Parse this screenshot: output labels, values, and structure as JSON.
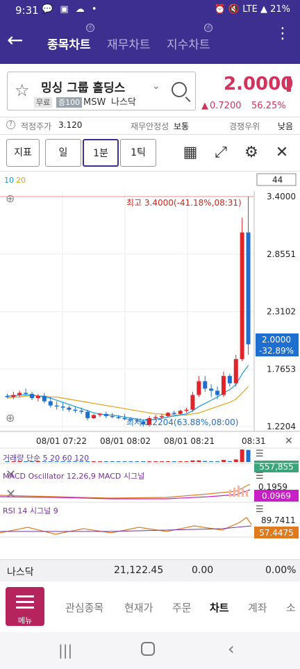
{
  "status_bar": {
    "time": "9:31",
    "left_icons": "💬 ▣ ☁ •",
    "right_icons": "⏰ 🔇 LTE ▲ 21%"
  },
  "nav": {
    "tabs": [
      {
        "label": "종목차트",
        "active": true
      },
      {
        "label": "재무차트",
        "active": false
      },
      {
        "label": "지수차트",
        "active": false
      }
    ]
  },
  "stock": {
    "name": "밍싱 그룹 홀딩스",
    "tags": [
      "무료",
      "증100"
    ],
    "ticker": "MSW",
    "market": "나스닥",
    "price": "2.0000",
    "change": "0.7200",
    "change_pct": "56.25%"
  },
  "info": {
    "fair_price_label": "적정주가",
    "fair_price": "3.120",
    "stability_label": "재무안정성",
    "stability": "보통",
    "competition_label": "경쟁우위",
    "competition": "낮음"
  },
  "toolbar": {
    "indicator": "지표",
    "day": "일",
    "minute": "1분",
    "tick": "1틱"
  },
  "chart_data": {
    "type": "candlestick",
    "ma_legend": [
      "10",
      "20"
    ],
    "count_box": "44",
    "high_label": "최고 3.4000(-41.18%,08:31)",
    "low_label": "최저 1.2204(63.88%,08:00)",
    "y_ticks": [
      "3.4000",
      "2.8551",
      "2.3102",
      "1.7653",
      "1.2204"
    ],
    "ylim": [
      1.2204,
      3.4
    ],
    "current": "2.0000",
    "current_pct": "-32.89%",
    "x_ticks": [
      "08/01 07:22",
      "08/01 08:02",
      "08/01 08:21",
      "08:31"
    ],
    "candles": [
      {
        "o": 1.51,
        "h": 1.53,
        "l": 1.49,
        "c": 1.5
      },
      {
        "o": 1.5,
        "h": 1.55,
        "l": 1.48,
        "c": 1.52
      },
      {
        "o": 1.52,
        "h": 1.56,
        "l": 1.5,
        "c": 1.54
      },
      {
        "o": 1.54,
        "h": 1.58,
        "l": 1.52,
        "c": 1.53
      },
      {
        "o": 1.53,
        "h": 1.55,
        "l": 1.47,
        "c": 1.49
      },
      {
        "o": 1.49,
        "h": 1.53,
        "l": 1.46,
        "c": 1.51
      },
      {
        "o": 1.51,
        "h": 1.54,
        "l": 1.44,
        "c": 1.46
      },
      {
        "o": 1.46,
        "h": 1.5,
        "l": 1.4,
        "c": 1.42
      },
      {
        "o": 1.42,
        "h": 1.46,
        "l": 1.38,
        "c": 1.41
      },
      {
        "o": 1.41,
        "h": 1.45,
        "l": 1.37,
        "c": 1.4
      },
      {
        "o": 1.4,
        "h": 1.42,
        "l": 1.36,
        "c": 1.38
      },
      {
        "o": 1.38,
        "h": 1.41,
        "l": 1.35,
        "c": 1.37
      },
      {
        "o": 1.37,
        "h": 1.4,
        "l": 1.34,
        "c": 1.36
      },
      {
        "o": 1.36,
        "h": 1.38,
        "l": 1.28,
        "c": 1.3
      },
      {
        "o": 1.3,
        "h": 1.34,
        "l": 1.29,
        "c": 1.33
      },
      {
        "o": 1.33,
        "h": 1.35,
        "l": 1.31,
        "c": 1.34
      },
      {
        "o": 1.34,
        "h": 1.36,
        "l": 1.3,
        "c": 1.32
      },
      {
        "o": 1.32,
        "h": 1.35,
        "l": 1.3,
        "c": 1.31
      },
      {
        "o": 1.31,
        "h": 1.33,
        "l": 1.29,
        "c": 1.3
      },
      {
        "o": 1.3,
        "h": 1.34,
        "l": 1.28,
        "c": 1.29
      },
      {
        "o": 1.29,
        "h": 1.31,
        "l": 1.27,
        "c": 1.28
      },
      {
        "o": 1.28,
        "h": 1.3,
        "l": 1.26,
        "c": 1.27
      },
      {
        "o": 1.27,
        "h": 1.29,
        "l": 1.22,
        "c": 1.24
      },
      {
        "o": 1.24,
        "h": 1.32,
        "l": 1.2204,
        "c": 1.3
      },
      {
        "o": 1.3,
        "h": 1.33,
        "l": 1.28,
        "c": 1.31
      },
      {
        "o": 1.31,
        "h": 1.34,
        "l": 1.29,
        "c": 1.32
      },
      {
        "o": 1.32,
        "h": 1.36,
        "l": 1.31,
        "c": 1.35
      },
      {
        "o": 1.35,
        "h": 1.37,
        "l": 1.33,
        "c": 1.34
      },
      {
        "o": 1.34,
        "h": 1.38,
        "l": 1.33,
        "c": 1.37
      },
      {
        "o": 1.37,
        "h": 1.4,
        "l": 1.35,
        "c": 1.38
      },
      {
        "o": 1.38,
        "h": 1.55,
        "l": 1.36,
        "c": 1.52
      },
      {
        "o": 1.52,
        "h": 1.7,
        "l": 1.5,
        "c": 1.65
      },
      {
        "o": 1.65,
        "h": 1.7,
        "l": 1.55,
        "c": 1.58
      },
      {
        "o": 1.58,
        "h": 1.62,
        "l": 1.5,
        "c": 1.56
      },
      {
        "o": 1.56,
        "h": 1.6,
        "l": 1.48,
        "c": 1.52
      },
      {
        "o": 1.52,
        "h": 1.74,
        "l": 1.5,
        "c": 1.7
      },
      {
        "o": 1.7,
        "h": 1.72,
        "l": 1.6,
        "c": 1.63
      },
      {
        "o": 1.63,
        "h": 1.9,
        "l": 1.6,
        "c": 1.86
      },
      {
        "o": 1.86,
        "h": 3.2,
        "l": 1.84,
        "c": 3.06
      },
      {
        "o": 3.06,
        "h": 3.4,
        "l": 1.9,
        "c": 2.0
      }
    ],
    "ma10": [
      1.51,
      1.51,
      1.52,
      1.52,
      1.52,
      1.51,
      1.5,
      1.49,
      1.47,
      1.45,
      1.43,
      1.41,
      1.39,
      1.37,
      1.35,
      1.34,
      1.33,
      1.33,
      1.32,
      1.31,
      1.3,
      1.29,
      1.28,
      1.28,
      1.29,
      1.3,
      1.31,
      1.32,
      1.33,
      1.34,
      1.37,
      1.41,
      1.44,
      1.47,
      1.5,
      1.54,
      1.57,
      1.62,
      1.72,
      1.8
    ],
    "ma20": [
      1.49,
      1.5,
      1.5,
      1.51,
      1.51,
      1.51,
      1.51,
      1.5,
      1.5,
      1.49,
      1.48,
      1.47,
      1.46,
      1.45,
      1.44,
      1.43,
      1.42,
      1.41,
      1.4,
      1.39,
      1.38,
      1.37,
      1.36,
      1.35,
      1.34,
      1.34,
      1.33,
      1.33,
      1.33,
      1.33,
      1.34,
      1.35,
      1.37,
      1.39,
      1.41,
      1.43,
      1.45,
      1.48,
      1.54,
      1.6
    ],
    "volume_label": "거래량 단순 5 20 60 120",
    "volume_value": "557,855",
    "macd_label": "MACD Oscillator 12,26,9 MACD 시그널",
    "macd_tick": "0.1959",
    "macd_value": "0.0969",
    "rsi_label": "RSI 14 시그널 9",
    "rsi_tick": "89.7411",
    "rsi_value": "57.4475"
  },
  "index_row": {
    "name": "나스닥",
    "value": "21,122.45",
    "change": "0.00",
    "pct": "0.00%"
  },
  "menu": {
    "label": "메뉴",
    "tabs": [
      "관심종목",
      "현재가",
      "주문",
      "차트",
      "계좌",
      "소"
    ]
  },
  "colors": {
    "brand": "#3d2f8f",
    "up": "#e0242b",
    "down": "#1f6fd1",
    "accent": "#d0335c"
  }
}
